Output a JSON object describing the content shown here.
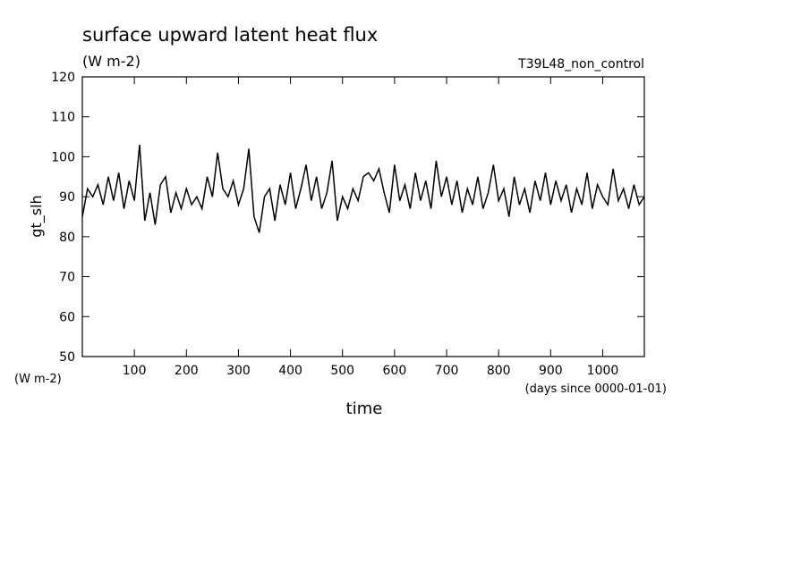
{
  "chart_data": {
    "type": "line",
    "title": "surface upward latent heat flux",
    "subtitle": "(W m-2)",
    "annotation": "T39L48_non_control",
    "y_label": "gt_slh",
    "y_unit": "(W m-2)",
    "x_label": "time",
    "x_unit": "(days since 0000-01-01)",
    "xlim": [
      0,
      1080
    ],
    "ylim": [
      50,
      120
    ],
    "xticks": [
      100,
      200,
      300,
      400,
      500,
      600,
      700,
      800,
      900,
      1000
    ],
    "yticks": [
      50,
      60,
      70,
      80,
      90,
      100,
      110,
      120
    ],
    "x": [
      0,
      10,
      20,
      30,
      40,
      50,
      60,
      70,
      80,
      90,
      100,
      110,
      120,
      130,
      140,
      150,
      160,
      170,
      180,
      190,
      200,
      210,
      220,
      230,
      240,
      250,
      260,
      270,
      280,
      290,
      300,
      310,
      320,
      330,
      340,
      350,
      360,
      370,
      380,
      390,
      400,
      410,
      420,
      430,
      440,
      450,
      460,
      470,
      480,
      490,
      500,
      510,
      520,
      530,
      540,
      550,
      560,
      570,
      580,
      590,
      600,
      610,
      620,
      630,
      640,
      650,
      660,
      670,
      680,
      690,
      700,
      710,
      720,
      730,
      740,
      750,
      760,
      770,
      780,
      790,
      800,
      810,
      820,
      830,
      840,
      850,
      860,
      870,
      880,
      890,
      900,
      910,
      920,
      930,
      940,
      950,
      960,
      970,
      980,
      990,
      1000,
      1010,
      1020,
      1030,
      1040,
      1050,
      1060,
      1070,
      1080
    ],
    "series": [
      {
        "color": "#000000",
        "values": [
          85,
          92,
          90,
          93,
          88,
          95,
          89,
          96,
          87,
          94,
          89,
          103,
          84,
          91,
          83,
          93,
          95,
          86,
          91,
          87,
          92,
          88,
          90,
          87,
          95,
          90,
          101,
          92,
          90,
          94,
          88,
          92,
          102,
          85,
          81,
          90,
          92,
          84,
          93,
          88,
          96,
          87,
          92,
          98,
          89,
          95,
          87,
          91,
          99,
          84,
          90,
          87,
          92,
          89,
          95,
          96,
          94,
          97,
          91,
          86,
          98,
          89,
          93,
          87,
          96,
          89,
          94,
          87,
          99,
          90,
          95,
          88,
          94,
          86,
          92,
          88,
          95,
          87,
          91,
          98,
          89,
          92,
          85,
          95,
          88,
          92,
          86,
          94,
          89,
          96,
          88,
          94,
          89,
          93,
          86,
          92,
          88,
          96,
          87,
          93,
          90,
          88,
          97,
          89,
          92,
          87,
          93,
          88,
          90
        ]
      }
    ]
  }
}
